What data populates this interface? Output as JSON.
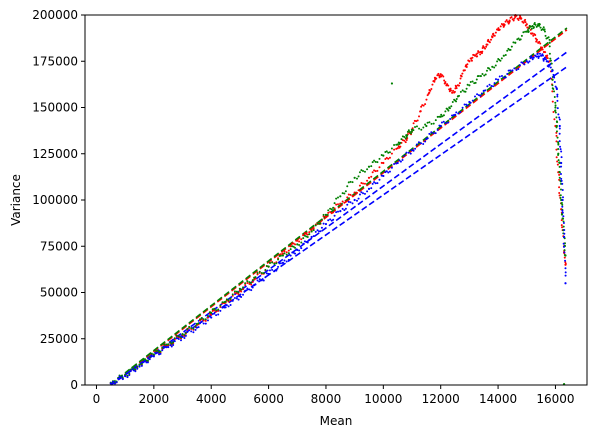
{
  "chart_data": {
    "type": "scatter",
    "title": "",
    "xlabel": "Mean",
    "ylabel": "Variance",
    "xlim": [
      -400,
      17100
    ],
    "ylim": [
      0,
      200000
    ],
    "x_ticks": [
      0,
      2000,
      4000,
      6000,
      8000,
      10000,
      12000,
      14000,
      16000
    ],
    "y_ticks": [
      0,
      25000,
      50000,
      75000,
      100000,
      125000,
      150000,
      175000,
      200000
    ],
    "grid": false,
    "legend": "none",
    "series": [
      {
        "color": "#ff0000",
        "marker": "dot",
        "points": [
          [
            500,
            1000
          ],
          [
            1000,
            5000
          ],
          [
            1500,
            10500
          ],
          [
            2000,
            16000
          ],
          [
            2500,
            21500
          ],
          [
            3000,
            27000
          ],
          [
            3500,
            32500
          ],
          [
            4000,
            38000
          ],
          [
            4500,
            44500
          ],
          [
            5000,
            51000
          ],
          [
            5500,
            57000
          ],
          [
            6000,
            64000
          ],
          [
            6500,
            71000
          ],
          [
            7000,
            78000
          ],
          [
            7500,
            84000
          ],
          [
            8000,
            91000
          ],
          [
            8500,
            98000
          ],
          [
            9000,
            104000
          ],
          [
            9500,
            112000
          ],
          [
            10000,
            120000
          ],
          [
            10500,
            128000
          ],
          [
            10800,
            133000
          ],
          [
            11000,
            138000
          ],
          [
            11300,
            148000
          ],
          [
            11600,
            158000
          ],
          [
            11800,
            166000
          ],
          [
            12000,
            168000
          ],
          [
            12200,
            162000
          ],
          [
            12400,
            158000
          ],
          [
            12600,
            162000
          ],
          [
            12800,
            170000
          ],
          [
            13000,
            175000
          ],
          [
            13200,
            178000
          ],
          [
            13400,
            180000
          ],
          [
            13600,
            184000
          ],
          [
            13800,
            188000
          ],
          [
            14000,
            192000
          ],
          [
            14200,
            195000
          ],
          [
            14400,
            197000
          ],
          [
            14600,
            199000
          ],
          [
            14800,
            198000
          ],
          [
            15000,
            195000
          ],
          [
            15200,
            190000
          ],
          [
            15400,
            185000
          ],
          [
            15600,
            180000
          ],
          [
            15800,
            175000
          ],
          [
            16000,
            140000
          ],
          [
            16100,
            115000
          ],
          [
            16200,
            95000
          ],
          [
            16300,
            75000
          ],
          [
            16350,
            65000
          ]
        ]
      },
      {
        "color": "#008000",
        "marker": "dot",
        "points": [
          [
            500,
            1200
          ],
          [
            1000,
            5500
          ],
          [
            1500,
            11000
          ],
          [
            2000,
            16500
          ],
          [
            2500,
            22000
          ],
          [
            3000,
            27500
          ],
          [
            3500,
            33000
          ],
          [
            4000,
            39000
          ],
          [
            4500,
            45000
          ],
          [
            5000,
            52000
          ],
          [
            5500,
            58000
          ],
          [
            6000,
            64000
          ],
          [
            6500,
            70000
          ],
          [
            7000,
            76000
          ],
          [
            7500,
            83000
          ],
          [
            8000,
            92000
          ],
          [
            8500,
            102000
          ],
          [
            9000,
            112000
          ],
          [
            9500,
            118000
          ],
          [
            10000,
            124000
          ],
          [
            10500,
            130000
          ],
          [
            10800,
            135000
          ],
          [
            11000,
            138000
          ],
          [
            11500,
            140000
          ],
          [
            12000,
            145000
          ],
          [
            12300,
            150000
          ],
          [
            12600,
            156000
          ],
          [
            13000,
            162000
          ],
          [
            13400,
            167000
          ],
          [
            13800,
            172000
          ],
          [
            14200,
            178000
          ],
          [
            14600,
            185000
          ],
          [
            15000,
            191000
          ],
          [
            15200,
            194000
          ],
          [
            15400,
            195000
          ],
          [
            15600,
            192000
          ],
          [
            15800,
            185000
          ],
          [
            15900,
            165000
          ],
          [
            16000,
            150000
          ],
          [
            16050,
            140000
          ],
          [
            16100,
            125000
          ],
          [
            16150,
            115000
          ],
          [
            16200,
            100000
          ],
          [
            16250,
            90000
          ],
          [
            16300,
            80000
          ],
          [
            16350,
            70000
          ],
          [
            10300,
            163000
          ],
          [
            16300,
            500
          ]
        ]
      },
      {
        "color": "#0000ff",
        "marker": "dot",
        "points": [
          [
            500,
            900
          ],
          [
            1000,
            4800
          ],
          [
            1500,
            10000
          ],
          [
            2000,
            15500
          ],
          [
            2500,
            20500
          ],
          [
            3000,
            26000
          ],
          [
            3500,
            31000
          ],
          [
            4000,
            36500
          ],
          [
            4500,
            42000
          ],
          [
            5000,
            48000
          ],
          [
            5500,
            54000
          ],
          [
            6000,
            60000
          ],
          [
            6500,
            66000
          ],
          [
            7000,
            73000
          ],
          [
            7500,
            80000
          ],
          [
            8000,
            87000
          ],
          [
            8500,
            94000
          ],
          [
            9000,
            100000
          ],
          [
            9500,
            106000
          ],
          [
            10000,
            113000
          ],
          [
            10500,
            120000
          ],
          [
            11000,
            127000
          ],
          [
            11500,
            133000
          ],
          [
            12000,
            140000
          ],
          [
            12500,
            146000
          ],
          [
            13000,
            153000
          ],
          [
            13500,
            159000
          ],
          [
            14000,
            165000
          ],
          [
            14500,
            170000
          ],
          [
            15000,
            175000
          ],
          [
            15300,
            178000
          ],
          [
            15500,
            178000
          ],
          [
            15700,
            175000
          ],
          [
            15900,
            170000
          ],
          [
            16050,
            160000
          ],
          [
            16150,
            140000
          ],
          [
            16200,
            120000
          ],
          [
            16250,
            100000
          ],
          [
            16300,
            80000
          ],
          [
            16350,
            55000
          ]
        ]
      }
    ],
    "fit_lines": [
      {
        "color": "#ff0000",
        "dash": true,
        "points": [
          [
            500,
            0
          ],
          [
            16400,
            192000
          ]
        ]
      },
      {
        "color": "#008000",
        "dash": true,
        "points": [
          [
            500,
            500
          ],
          [
            16400,
            193000
          ]
        ]
      },
      {
        "color": "#0000ff",
        "dash": true,
        "points": [
          [
            500,
            0
          ],
          [
            16400,
            180000
          ]
        ]
      },
      {
        "color": "#0000ff",
        "dash": true,
        "points": [
          [
            500,
            0
          ],
          [
            16400,
            172000
          ]
        ]
      }
    ]
  }
}
